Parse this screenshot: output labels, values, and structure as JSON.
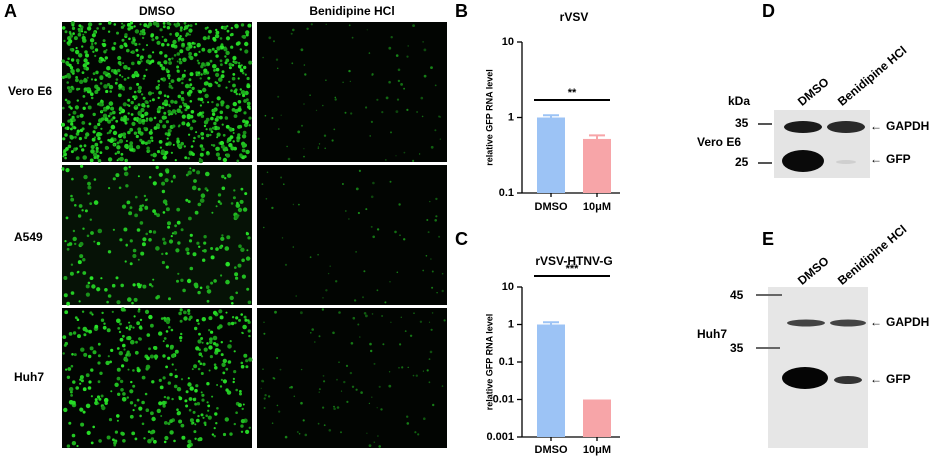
{
  "panel_a": {
    "label": "A",
    "columns": [
      "DMSO",
      "Benidipine HCl"
    ],
    "rows": [
      "Vero E6",
      "A549",
      "Huh7"
    ]
  },
  "chart_data": [
    {
      "label": "B",
      "type": "bar",
      "title": "rVSV",
      "y_label": "relative GFP RNA level",
      "categories": [
        "DMSO",
        "10μM"
      ],
      "values": [
        1,
        0.52
      ],
      "errors": [
        0.07,
        0.06
      ],
      "colors": [
        "#9cc3f5",
        "#f7a5a8"
      ],
      "log_scale": true,
      "ylim": [
        0.1,
        10
      ],
      "yticks": [
        0.1,
        1,
        10
      ],
      "annotation": "**"
    },
    {
      "label": "C",
      "type": "bar",
      "title": "rVSV-HTNV-G",
      "y_label": "relative GFP RNA level",
      "categories": [
        "DMSO",
        "10μM"
      ],
      "values": [
        1,
        0.01
      ],
      "errors": [
        0.15,
        0
      ],
      "colors": [
        "#9cc3f5",
        "#f7a5a8"
      ],
      "log_scale": true,
      "ylim": [
        0.001,
        10
      ],
      "yticks": [
        0.001,
        0.01,
        0.1,
        1,
        10
      ],
      "annotation": "***"
    }
  ],
  "blots": [
    {
      "label": "D",
      "cell_line": "Vero E6",
      "lanes": [
        "DMSO",
        "Benidipine HCl"
      ],
      "unit": "kDa",
      "markers": [
        "35",
        "25"
      ],
      "bands": [
        "GAPDH",
        "GFP"
      ]
    },
    {
      "label": "E",
      "cell_line": "Huh7",
      "lanes": [
        "DMSO",
        "Benidipine HCl"
      ],
      "markers": [
        "45",
        "35"
      ],
      "bands": [
        "GAPDH",
        "GFP"
      ]
    }
  ]
}
